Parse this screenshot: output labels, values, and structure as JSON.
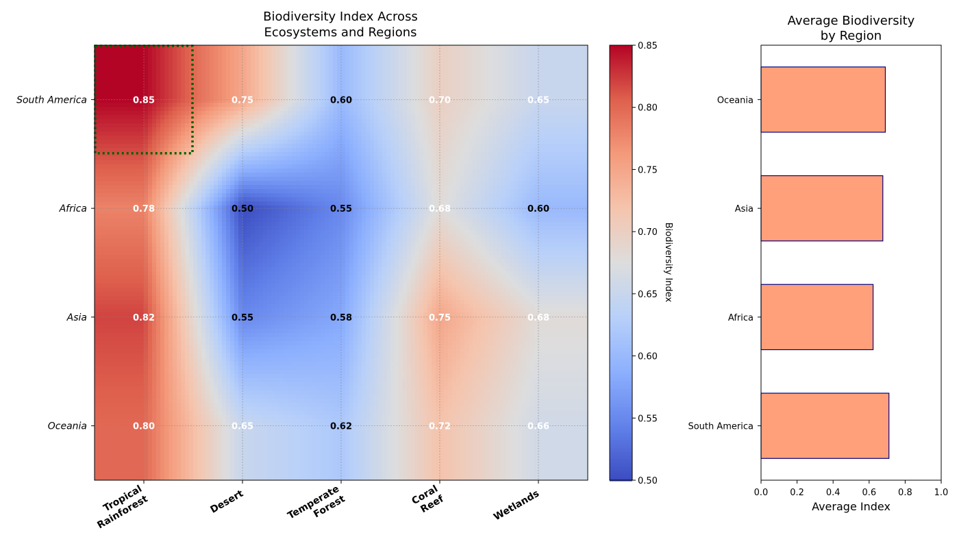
{
  "chart_data": [
    {
      "type": "heatmap",
      "title": "Biodiversity Index Across\nEcosystems and Regions",
      "x_categories": [
        "Tropical\nRainforest",
        "Desert",
        "Temperate\nForest",
        "Coral\nReef",
        "Wetlands"
      ],
      "y_categories": [
        "South America",
        "Africa",
        "Asia",
        "Oceania"
      ],
      "values": [
        [
          0.85,
          0.75,
          0.6,
          0.7,
          0.65
        ],
        [
          0.78,
          0.5,
          0.55,
          0.68,
          0.6
        ],
        [
          0.82,
          0.55,
          0.58,
          0.75,
          0.68
        ],
        [
          0.8,
          0.65,
          0.62,
          0.72,
          0.66
        ]
      ],
      "value_labels": [
        [
          "0.85",
          "0.75",
          "0.60",
          "0.70",
          "0.65"
        ],
        [
          "0.78",
          "0.50",
          "0.55",
          "0.68",
          "0.60"
        ],
        [
          "0.82",
          "0.55",
          "0.58",
          "0.75",
          "0.68"
        ],
        [
          "0.80",
          "0.65",
          "0.62",
          "0.72",
          "0.66"
        ]
      ],
      "colorscale": "coolwarm",
      "interpolated": true,
      "grid": true,
      "highlight": {
        "row": "South America",
        "column": "Tropical\nRainforest",
        "style": "dotted",
        "color": "#006400"
      },
      "colorbar": {
        "label": "Biodiversity Index",
        "range": [
          0.5,
          0.85
        ],
        "ticks": [
          "0.50",
          "0.55",
          "0.60",
          "0.65",
          "0.70",
          "0.75",
          "0.80",
          "0.85"
        ]
      }
    },
    {
      "type": "bar",
      "orientation": "horizontal",
      "title": "Average Biodiversity\nby Region",
      "categories": [
        "South America",
        "Africa",
        "Asia",
        "Oceania"
      ],
      "values": [
        0.71,
        0.622,
        0.676,
        0.69
      ],
      "xlabel": "Average Index",
      "xlim": [
        0,
        1
      ],
      "xticks": [
        "0.0",
        "0.2",
        "0.4",
        "0.6",
        "0.8",
        "1.0"
      ],
      "bar_color": "#FFA07A",
      "edge_color": "#000080"
    }
  ]
}
